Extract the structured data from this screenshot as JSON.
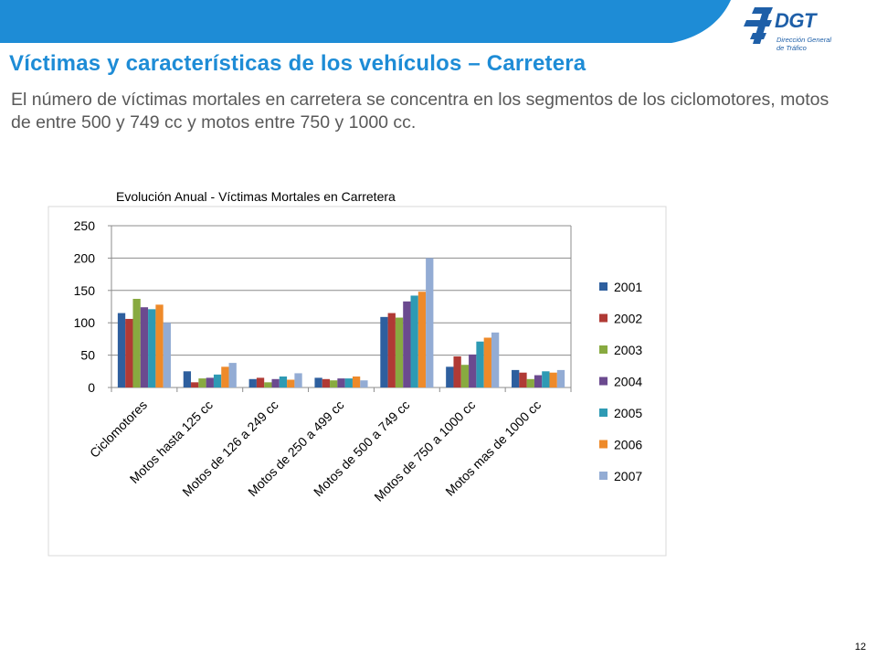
{
  "slide": {
    "title": "Víctimas y características de los vehículos – Carretera",
    "subtitle": "El número de víctimas mortales en carretera se concentra en los segmentos de los ciclomotores, motos de entre 500 y 749 cc y motos entre 750 y 1000 cc.",
    "page_number": "12"
  },
  "logo": {
    "name": "DGT",
    "line1": "Dirección General",
    "line2": "de Tráfico"
  },
  "colors": {
    "title": "#1e8cd6",
    "band": "#1e8cd6",
    "logo": "#1e5fa8"
  },
  "chart_data": {
    "type": "bar",
    "title": "Evolución Anual - Víctimas Mortales en Carretera",
    "xlabel": "",
    "ylabel": "",
    "ylim": [
      0,
      250
    ],
    "yticks": [
      0,
      50,
      100,
      150,
      200,
      250
    ],
    "grid": true,
    "legend_position": "right",
    "categories": [
      "Ciclomotores",
      "Motos hasta 125 cc",
      "Motos de 126 a 249 cc",
      "Motos de 250 a 499 cc",
      "Motos de 500 a 749 cc",
      "Motos de 750 a 1000 cc",
      "Motos mas de 1000 cc"
    ],
    "series": [
      {
        "name": "2001",
        "color": "#2e5f9e",
        "values": [
          115,
          25,
          13,
          15,
          109,
          32,
          27
        ]
      },
      {
        "name": "2002",
        "color": "#b03a35",
        "values": [
          106,
          8,
          15,
          13,
          115,
          48,
          23
        ]
      },
      {
        "name": "2003",
        "color": "#88aa40",
        "values": [
          137,
          14,
          8,
          11,
          108,
          35,
          13
        ]
      },
      {
        "name": "2004",
        "color": "#6b4a8f",
        "values": [
          124,
          15,
          13,
          14,
          133,
          51,
          19
        ]
      },
      {
        "name": "2005",
        "color": "#2e9ab4",
        "values": [
          121,
          20,
          17,
          14,
          142,
          71,
          25
        ]
      },
      {
        "name": "2006",
        "color": "#ee8a2a",
        "values": [
          128,
          32,
          12,
          17,
          148,
          77,
          23
        ]
      },
      {
        "name": "2007",
        "color": "#93acd4",
        "values": [
          100,
          38,
          22,
          11,
          200,
          85,
          27
        ]
      }
    ]
  }
}
